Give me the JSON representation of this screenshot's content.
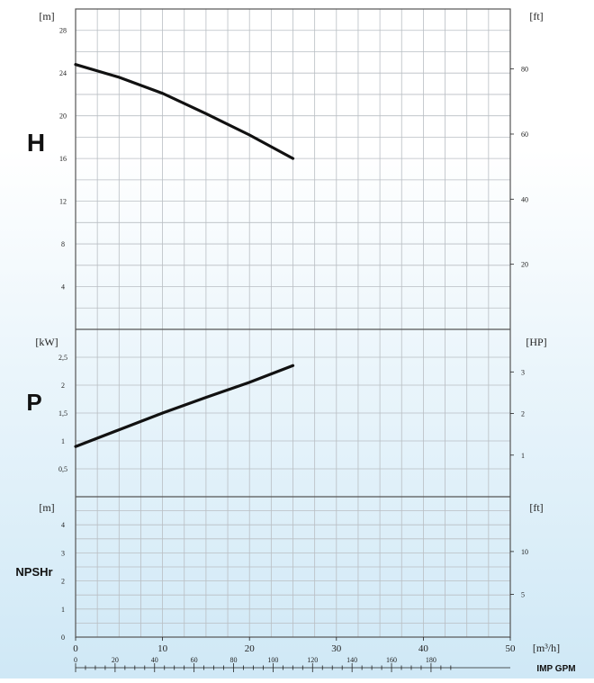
{
  "chart_data": {
    "type": "line",
    "x_unit_label": "[m³/h]",
    "x_ticks": [
      0,
      10,
      20,
      30,
      40,
      50
    ],
    "xlim": [
      0,
      50
    ],
    "secondary_x": {
      "label": "IMP GPM",
      "ticks": [
        0,
        20,
        40,
        60,
        80,
        100,
        120,
        140,
        160,
        180
      ]
    },
    "panels": [
      {
        "name": "head",
        "big_label": "H",
        "left_unit": "[m]",
        "right_unit": "[ft]",
        "ylim": [
          0,
          30
        ],
        "left_ticks": [
          4,
          8,
          12,
          16,
          20,
          24,
          28
        ],
        "right_ticks": [
          20,
          40,
          60,
          80
        ],
        "right_factor": 3.28084,
        "series": [
          {
            "x": [
              0,
              5,
              10,
              15,
              20,
              25
            ],
            "y": [
              24.8,
              23.6,
              22.1,
              20.2,
              18.2,
              16.0
            ]
          }
        ]
      },
      {
        "name": "power",
        "big_label": "P",
        "left_unit": "[kW]",
        "right_unit": "[HP]",
        "ylim": [
          0,
          3
        ],
        "left_ticks": [
          "0,5",
          "1",
          "1,5",
          "2",
          "2,5"
        ],
        "left_tick_values": [
          0.5,
          1,
          1.5,
          2,
          2.5
        ],
        "right_ticks": [
          1,
          2,
          3
        ],
        "right_factor": 1.341,
        "series": [
          {
            "x": [
              0,
              5,
              10,
              15,
              20,
              25
            ],
            "y": [
              0.9,
              1.2,
              1.5,
              1.78,
              2.05,
              2.35
            ]
          }
        ]
      },
      {
        "name": "npsh",
        "big_label": "NPSHr",
        "left_unit": "[m]",
        "right_unit": "[ft]",
        "ylim": [
          0,
          5
        ],
        "left_ticks": [
          0,
          1,
          2,
          3,
          4
        ],
        "right_ticks": [
          5,
          10
        ],
        "right_factor": 3.28084,
        "series": []
      }
    ]
  }
}
